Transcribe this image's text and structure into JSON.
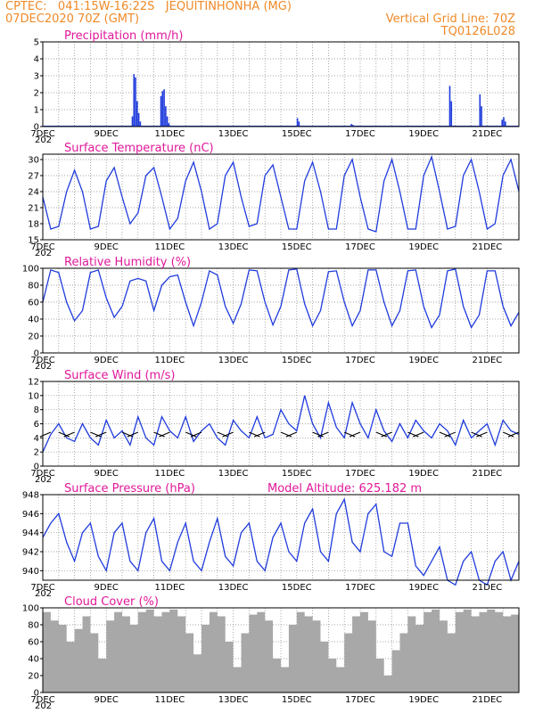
{
  "header": {
    "line1": "CPTEC:   041:15W-16:22S   JEQUITINHONHA (MG)",
    "line2": "07DEC2020 70Z (GMT)",
    "right1": "Vertical Grid Line: 70Z",
    "right2": "TQ0126L028"
  },
  "colors": {
    "header": "#f08a28",
    "title": "#e0189a",
    "line": "#1f3bdc",
    "cloud": "#a8a8a8"
  },
  "x_labels": [
    "7DEC",
    "9DEC",
    "11DEC",
    "13DEC",
    "15DEC",
    "17DEC",
    "19DEC",
    "21DEC"
  ],
  "year_fragment": "202",
  "chart_data": [
    {
      "type": "bar",
      "title": "Precipitation (mm/h)",
      "ylim": [
        0,
        5
      ],
      "yticks": [
        0,
        1,
        2,
        3,
        4,
        5
      ],
      "x_unit": "days since 7DEC 00Z",
      "bars": [
        [
          2.8,
          0.6
        ],
        [
          2.85,
          3.1
        ],
        [
          2.9,
          2.9
        ],
        [
          2.95,
          1.5
        ],
        [
          3.0,
          0.8
        ],
        [
          3.05,
          0.3
        ],
        [
          3.7,
          1.8
        ],
        [
          3.75,
          2.1
        ],
        [
          3.8,
          2.2
        ],
        [
          3.85,
          1.2
        ],
        [
          3.9,
          0.6
        ],
        [
          3.95,
          0.2
        ],
        [
          8.0,
          0.5
        ],
        [
          8.05,
          0.3
        ],
        [
          9.7,
          0.15
        ],
        [
          9.75,
          0.1
        ],
        [
          12.8,
          2.4
        ],
        [
          12.85,
          1.5
        ],
        [
          13.75,
          1.9
        ],
        [
          13.8,
          1.2
        ],
        [
          14.45,
          0.4
        ],
        [
          14.5,
          0.55
        ],
        [
          14.55,
          0.3
        ]
      ]
    },
    {
      "type": "line",
      "title": "Surface Temperature (nC)",
      "ylim": [
        15,
        31
      ],
      "yticks": [
        15,
        18,
        21,
        24,
        27,
        30
      ],
      "series": [
        {
          "x": [
            0,
            0.25,
            0.5,
            0.75,
            1,
            1.25,
            1.5,
            1.75,
            2,
            2.25,
            2.5,
            2.75,
            3,
            3.25,
            3.5,
            3.75,
            4,
            4.25,
            4.5,
            4.75,
            5,
            5.25,
            5.5,
            5.75,
            6,
            6.25,
            6.5,
            6.75,
            7,
            7.25,
            7.5,
            7.75,
            8,
            8.25,
            8.5,
            8.75,
            9,
            9.25,
            9.5,
            9.75,
            10,
            10.25,
            10.5,
            10.75,
            11,
            11.25,
            11.5,
            11.75,
            12,
            12.25,
            12.5,
            12.75,
            13,
            13.25,
            13.5,
            13.75,
            14,
            14.25,
            14.5,
            14.75,
            15
          ],
          "values": [
            23,
            17,
            17.5,
            24,
            28,
            24,
            17,
            17.5,
            26,
            28.5,
            23,
            18,
            20,
            27,
            28.5,
            23,
            17,
            19,
            26,
            29.5,
            24,
            17,
            18,
            27,
            29.5,
            23,
            17.5,
            18,
            27,
            29,
            23,
            17,
            17,
            26,
            29.5,
            24,
            17,
            17,
            27,
            30,
            23,
            17,
            16.5,
            26,
            30,
            24,
            17,
            17,
            27,
            30.5,
            24,
            17,
            17.5,
            27,
            30,
            24,
            17,
            18,
            27,
            30,
            24
          ]
        }
      ]
    },
    {
      "type": "line",
      "title": "Relative Humidity (%)",
      "ylim": [
        0,
        100
      ],
      "yticks": [
        0,
        20,
        40,
        60,
        80,
        100
      ],
      "series": [
        {
          "x": [
            0,
            0.25,
            0.5,
            0.75,
            1,
            1.25,
            1.5,
            1.75,
            2,
            2.25,
            2.5,
            2.75,
            3,
            3.25,
            3.5,
            3.75,
            4,
            4.25,
            4.5,
            4.75,
            5,
            5.25,
            5.5,
            5.75,
            6,
            6.25,
            6.5,
            6.75,
            7,
            7.25,
            7.5,
            7.75,
            8,
            8.25,
            8.5,
            8.75,
            9,
            9.25,
            9.5,
            9.75,
            10,
            10.25,
            10.5,
            10.75,
            11,
            11.25,
            11.5,
            11.75,
            12,
            12.25,
            12.5,
            12.75,
            13,
            13.25,
            13.5,
            13.75,
            14,
            14.25,
            14.5,
            14.75,
            15
          ],
          "values": [
            60,
            98,
            95,
            60,
            38,
            50,
            95,
            98,
            65,
            42,
            55,
            85,
            88,
            85,
            50,
            80,
            90,
            92,
            60,
            32,
            60,
            97,
            92,
            55,
            35,
            58,
            98,
            97,
            60,
            33,
            55,
            98,
            99,
            58,
            32,
            50,
            96,
            97,
            60,
            32,
            50,
            98,
            98,
            60,
            32,
            50,
            97,
            98,
            55,
            30,
            45,
            97,
            99,
            55,
            30,
            45,
            97,
            97,
            55,
            32,
            48
          ]
        }
      ]
    },
    {
      "type": "line",
      "title": "Surface Wind (m/s)",
      "ylim": [
        0,
        12
      ],
      "yticks": [
        0,
        2,
        4,
        6,
        8,
        10,
        12
      ],
      "series": [
        {
          "x": [
            0,
            0.25,
            0.5,
            0.75,
            1,
            1.25,
            1.5,
            1.75,
            2,
            2.25,
            2.5,
            2.75,
            3,
            3.25,
            3.5,
            3.75,
            4,
            4.25,
            4.5,
            4.75,
            5,
            5.25,
            5.5,
            5.75,
            6,
            6.25,
            6.5,
            6.75,
            7,
            7.25,
            7.5,
            7.75,
            8,
            8.25,
            8.5,
            8.75,
            9,
            9.25,
            9.5,
            9.75,
            10,
            10.25,
            10.5,
            10.75,
            11,
            11.25,
            11.5,
            11.75,
            12,
            12.25,
            12.5,
            12.75,
            13,
            13.25,
            13.5,
            13.75,
            14,
            14.25,
            14.5,
            14.75,
            15
          ],
          "values": [
            2,
            4.5,
            6,
            4,
            3.5,
            6,
            4,
            3,
            6.5,
            4,
            5,
            3,
            7,
            4,
            3,
            7,
            5,
            4,
            7,
            3.5,
            5,
            6,
            4,
            3,
            6.5,
            5,
            4,
            7,
            4,
            4.5,
            8,
            6,
            5,
            10,
            6,
            4,
            9,
            5.5,
            4,
            9,
            6,
            4,
            8,
            5,
            3.5,
            6,
            4,
            6.5,
            5,
            4,
            6,
            5,
            3,
            6.5,
            4,
            5,
            6,
            3,
            6.5,
            5,
            4.5
          ]
        }
      ],
      "arrows_x": [
        0.25,
        0.5,
        1,
        1.5,
        2,
        2.5,
        3,
        3.5,
        4,
        4.5,
        5,
        5.5,
        6,
        6.5,
        7,
        7.5,
        8,
        8.5,
        9,
        9.5,
        10,
        10.5,
        11,
        11.5,
        12,
        12.5,
        13,
        13.5,
        14,
        14.5,
        15
      ]
    },
    {
      "type": "line",
      "title": "Surface Pressure (hPa)",
      "annotation": "Model Altitude: 625.182 m",
      "ylim": [
        939,
        948
      ],
      "yticks": [
        940,
        942,
        944,
        946,
        948
      ],
      "series": [
        {
          "x": [
            0,
            0.25,
            0.5,
            0.75,
            1,
            1.25,
            1.5,
            1.75,
            2,
            2.25,
            2.5,
            2.75,
            3,
            3.25,
            3.5,
            3.75,
            4,
            4.25,
            4.5,
            4.75,
            5,
            5.25,
            5.5,
            5.75,
            6,
            6.25,
            6.5,
            6.75,
            7,
            7.25,
            7.5,
            7.75,
            8,
            8.25,
            8.5,
            8.75,
            9,
            9.25,
            9.5,
            9.75,
            10,
            10.25,
            10.5,
            10.75,
            11,
            11.25,
            11.5,
            11.75,
            12,
            12.25,
            12.5,
            12.75,
            13,
            13.25,
            13.5,
            13.75,
            14,
            14.25,
            14.5,
            14.75,
            15
          ],
          "values": [
            943.5,
            945,
            946,
            943,
            941,
            944,
            945,
            941.5,
            940,
            944,
            945,
            941,
            940,
            944,
            945.5,
            941,
            940,
            943,
            945,
            941,
            940,
            943,
            945.5,
            941.5,
            940.5,
            944,
            945,
            941,
            940,
            943.5,
            945,
            942,
            941,
            945,
            946.5,
            942,
            941,
            946,
            947.5,
            943,
            942,
            946,
            947,
            942,
            941.5,
            945,
            945,
            940.5,
            939.5,
            941,
            942.5,
            939,
            938.5,
            941,
            942,
            939,
            938.5,
            941,
            942,
            939,
            941
          ]
        }
      ]
    },
    {
      "type": "bar",
      "title": "Cloud Cover (%)",
      "ylim": [
        0,
        100
      ],
      "yticks": [
        0,
        20,
        40,
        60,
        80,
        100
      ],
      "x": [
        0,
        0.25,
        0.5,
        0.75,
        1,
        1.25,
        1.5,
        1.75,
        2,
        2.25,
        2.5,
        2.75,
        3,
        3.25,
        3.5,
        3.75,
        4,
        4.25,
        4.5,
        4.75,
        5,
        5.25,
        5.5,
        5.75,
        6,
        6.25,
        6.5,
        6.75,
        7,
        7.25,
        7.5,
        7.75,
        8,
        8.25,
        8.5,
        8.75,
        9,
        9.25,
        9.5,
        9.75,
        10,
        10.25,
        10.5,
        10.75,
        11,
        11.25,
        11.5,
        11.75,
        12,
        12.25,
        12.5,
        12.75,
        13,
        13.25,
        13.5,
        13.75,
        14,
        14.25,
        14.5,
        14.75,
        15
      ],
      "values": [
        95,
        85,
        80,
        60,
        75,
        90,
        70,
        40,
        85,
        95,
        90,
        80,
        95,
        98,
        90,
        95,
        98,
        90,
        70,
        45,
        80,
        95,
        90,
        60,
        30,
        70,
        92,
        95,
        85,
        40,
        30,
        80,
        95,
        90,
        85,
        60,
        40,
        30,
        70,
        90,
        95,
        85,
        40,
        20,
        50,
        70,
        90,
        80,
        95,
        98,
        85,
        70,
        95,
        98,
        90,
        95,
        98,
        95,
        90,
        92,
        96
      ]
    }
  ]
}
